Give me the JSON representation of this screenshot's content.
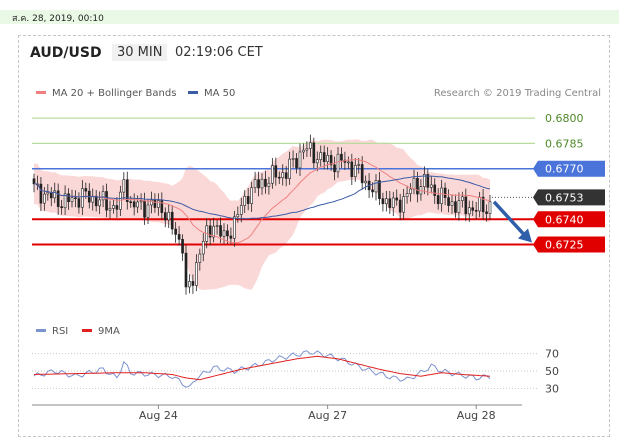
{
  "date_bar": "ส.ค. 28, 2019, 00:10",
  "header": {
    "symbol": "AUD/USD",
    "timeframe": "30 MIN",
    "time": "02:19:06 CET"
  },
  "colors": {
    "ma20": "#f08080",
    "ma50": "#3b5ba5",
    "rsi": "#7b93cf",
    "ma9": "#e02020",
    "resistance_green": "#b9dc9e",
    "level_blue": "#4a74d9",
    "level_red": "#e00000",
    "current": "#333333",
    "bollinger_fill": "#f9c8c8",
    "arrow": "#2e5fa8"
  },
  "chart_data": [
    {
      "type": "candlestick",
      "legend": {
        "ma20_label": "MA 20 + Bollinger Bands",
        "ma50_label": "MA 50"
      },
      "watermark": "Research © 2019 Trading Central",
      "ylim": [
        0.6685,
        0.6806
      ],
      "levels": [
        {
          "value": 0.68,
          "label": "0.6800",
          "kind": "resistance_green"
        },
        {
          "value": 0.6785,
          "label": "0.6785",
          "kind": "resistance_green"
        },
        {
          "value": 0.677,
          "label": "0.6770",
          "kind": "level_blue"
        },
        {
          "value": 0.6753,
          "label": "0.6753",
          "kind": "current"
        },
        {
          "value": 0.674,
          "label": "0.6740",
          "kind": "level_red"
        },
        {
          "value": 0.6725,
          "label": "0.6725",
          "kind": "level_red"
        }
      ],
      "x_labels": [
        {
          "label": "Aug 24",
          "index": 36
        },
        {
          "label": "Aug 27",
          "index": 85
        },
        {
          "label": "Aug 28",
          "index": 128
        }
      ],
      "close_anchors": [
        [
          0,
          0.6758
        ],
        [
          4,
          0.6754
        ],
        [
          9,
          0.675
        ],
        [
          14,
          0.6754
        ],
        [
          18,
          0.6752
        ],
        [
          22,
          0.6748
        ],
        [
          24,
          0.6748
        ],
        [
          25,
          0.675
        ],
        [
          26,
          0.6764
        ],
        [
          27,
          0.6756
        ],
        [
          28,
          0.6748
        ],
        [
          32,
          0.6748
        ],
        [
          37,
          0.6748
        ],
        [
          39,
          0.6738
        ],
        [
          43,
          0.6725
        ],
        [
          44,
          0.6695
        ],
        [
          46,
          0.6705
        ],
        [
          48,
          0.6722
        ],
        [
          52,
          0.6738
        ],
        [
          55,
          0.6728
        ],
        [
          58,
          0.6738
        ],
        [
          62,
          0.6756
        ],
        [
          66,
          0.6762
        ],
        [
          70,
          0.6766
        ],
        [
          73,
          0.6768
        ],
        [
          76,
          0.6776
        ],
        [
          78,
          0.6782
        ],
        [
          80,
          0.678
        ],
        [
          85,
          0.6774
        ],
        [
          90,
          0.6774
        ],
        [
          93,
          0.677
        ],
        [
          96,
          0.6762
        ],
        [
          100,
          0.6754
        ],
        [
          104,
          0.6748
        ],
        [
          107,
          0.6752
        ],
        [
          110,
          0.676
        ],
        [
          113,
          0.6762
        ],
        [
          116,
          0.6756
        ],
        [
          120,
          0.675
        ],
        [
          124,
          0.6748
        ],
        [
          128,
          0.6746
        ],
        [
          132,
          0.6748
        ]
      ],
      "candle_count": 133
    },
    {
      "type": "line",
      "series": [
        {
          "name": "RSI",
          "anchors": [
            [
              0,
              44
            ],
            [
              6,
              50
            ],
            [
              12,
              44
            ],
            [
              20,
              52
            ],
            [
              24,
              42
            ],
            [
              26,
              60
            ],
            [
              28,
              48
            ],
            [
              34,
              46
            ],
            [
              40,
              44
            ],
            [
              43,
              36
            ],
            [
              45,
              30
            ],
            [
              47,
              42
            ],
            [
              52,
              54
            ],
            [
              58,
              50
            ],
            [
              64,
              56
            ],
            [
              70,
              64
            ],
            [
              75,
              68
            ],
            [
              80,
              72
            ],
            [
              85,
              68
            ],
            [
              90,
              62
            ],
            [
              96,
              52
            ],
            [
              104,
              42
            ],
            [
              108,
              40
            ],
            [
              112,
              48
            ],
            [
              115,
              56
            ],
            [
              118,
              50
            ],
            [
              124,
              45
            ],
            [
              128,
              42
            ],
            [
              132,
              44
            ]
          ]
        },
        {
          "name": "9MA",
          "anchors": [
            [
              0,
              46
            ],
            [
              12,
              47
            ],
            [
              24,
              48
            ],
            [
              32,
              48
            ],
            [
              40,
              46
            ],
            [
              44,
              42
            ],
            [
              48,
              40
            ],
            [
              54,
              46
            ],
            [
              60,
              52
            ],
            [
              68,
              58
            ],
            [
              76,
              64
            ],
            [
              82,
              67
            ],
            [
              88,
              64
            ],
            [
              94,
              58
            ],
            [
              100,
              52
            ],
            [
              106,
              47
            ],
            [
              112,
              44
            ],
            [
              118,
              48
            ],
            [
              124,
              46
            ],
            [
              132,
              44
            ]
          ]
        }
      ],
      "ylim": [
        20,
        80
      ],
      "yticks": [
        70,
        50,
        30
      ]
    }
  ]
}
